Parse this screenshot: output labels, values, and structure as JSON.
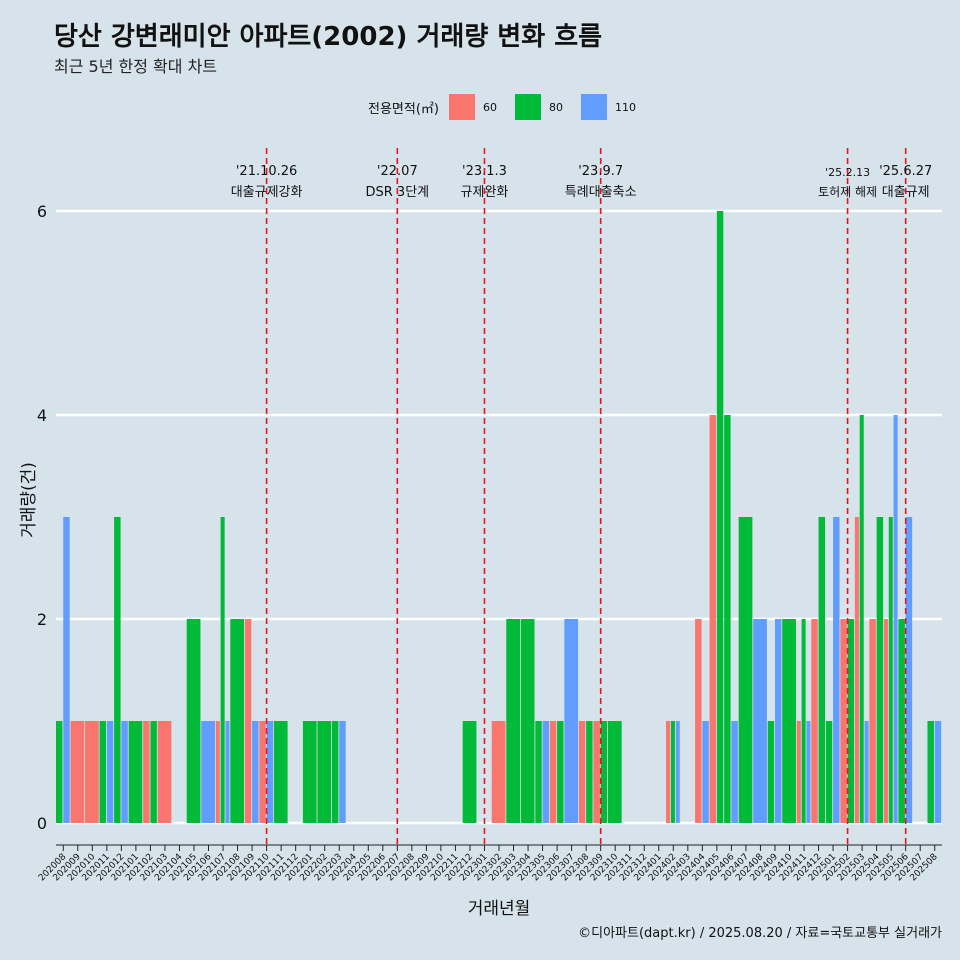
{
  "title": "당산 강변래미안 아파트(2002) 거래량 변화 흐름",
  "subtitle": "최근 5년 한정 확대 차트",
  "legend": {
    "title": "전용면적(㎡)"
  },
  "caption": "©디아파트(dapt.kr) / 2025.08.20 / 자료=국토교통부 실거래가",
  "chart_data": {
    "type": "bar",
    "xlabel": "거래년월",
    "ylabel": "거래량(건)",
    "ylim": [
      0,
      6
    ],
    "yticks": [
      0,
      2,
      4,
      6
    ],
    "grid": true,
    "legend_position": "top",
    "categories": [
      "202008",
      "202009",
      "202010",
      "202011",
      "202012",
      "202101",
      "202102",
      "202103",
      "202104",
      "202105",
      "202106",
      "202107",
      "202108",
      "202109",
      "202110",
      "202111",
      "202112",
      "202201",
      "202202",
      "202203",
      "202204",
      "202205",
      "202206",
      "202207",
      "202208",
      "202209",
      "202210",
      "202211",
      "202212",
      "202301",
      "202302",
      "202303",
      "202304",
      "202305",
      "202306",
      "202307",
      "202308",
      "202309",
      "202310",
      "202311",
      "202312",
      "202401",
      "202402",
      "202403",
      "202404",
      "202405",
      "202406",
      "202407",
      "202408",
      "202409",
      "202410",
      "202411",
      "202412",
      "202501",
      "202502",
      "202503",
      "202504",
      "202505",
      "202506",
      "202507",
      "202508"
    ],
    "series": [
      {
        "name": "60",
        "color": "#f8766d",
        "values": [
          0,
          1,
          1,
          0,
          0,
          0,
          1,
          1,
          0,
          0,
          0,
          1,
          0,
          2,
          1,
          0,
          0,
          0,
          0,
          0,
          0,
          0,
          0,
          0,
          0,
          0,
          0,
          0,
          0,
          0,
          1,
          0,
          0,
          0,
          1,
          0,
          1,
          1,
          0,
          0,
          0,
          0,
          1,
          0,
          2,
          4,
          0,
          0,
          0,
          0,
          0,
          1,
          2,
          0,
          2,
          3,
          2,
          2,
          0,
          0,
          0
        ]
      },
      {
        "name": "80",
        "color": "#00ba38",
        "values": [
          1,
          0,
          0,
          1,
          3,
          1,
          1,
          0,
          0,
          2,
          0,
          3,
          2,
          0,
          0,
          1,
          0,
          1,
          1,
          1,
          0,
          0,
          0,
          0,
          0,
          0,
          0,
          0,
          1,
          0,
          0,
          2,
          2,
          1,
          1,
          0,
          1,
          1,
          1,
          0,
          0,
          0,
          1,
          0,
          0,
          6,
          4,
          3,
          0,
          1,
          2,
          2,
          3,
          1,
          2,
          4,
          3,
          3,
          2,
          0,
          1
        ]
      },
      {
        "name": "110",
        "color": "#619cff",
        "values": [
          3,
          0,
          0,
          1,
          1,
          0,
          0,
          0,
          0,
          0,
          1,
          1,
          0,
          1,
          1,
          0,
          0,
          0,
          0,
          1,
          0,
          0,
          0,
          0,
          0,
          0,
          0,
          0,
          0,
          0,
          0,
          0,
          0,
          1,
          0,
          2,
          0,
          0,
          0,
          0,
          0,
          0,
          1,
          0,
          1,
          0,
          1,
          0,
          2,
          2,
          0,
          1,
          0,
          3,
          0,
          1,
          0,
          4,
          3,
          0,
          1
        ]
      }
    ],
    "annotations": [
      {
        "month": "202110",
        "date": "'21.10.26",
        "label": "대출규제강화"
      },
      {
        "month": "202207",
        "date": "'22.07",
        "label": "DSR 3단계"
      },
      {
        "month": "202301",
        "date": "'23.1.3",
        "label": "규제완화"
      },
      {
        "month": "202309",
        "date": "'23.9.7",
        "label": "특례대출축소"
      },
      {
        "month": "202502",
        "date": "'25.2.13",
        "label": "토허제 해제"
      },
      {
        "month": "202506",
        "date": "'25.6.27",
        "label": "대출규제"
      }
    ]
  }
}
